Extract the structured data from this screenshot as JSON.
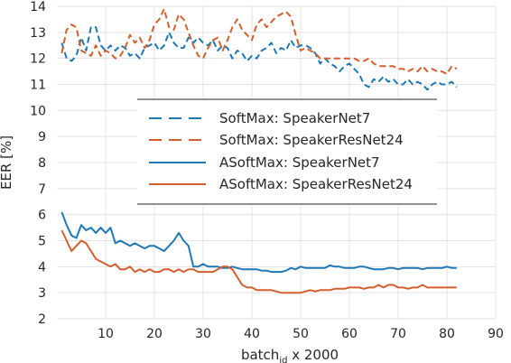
{
  "chart_data": {
    "type": "line",
    "xlabel_main": "batch",
    "xlabel_sub": "id",
    "xlabel_tail": " x 2000",
    "ylabel": "EER [%]",
    "xlim": [
      0,
      90
    ],
    "ylim": [
      2,
      14
    ],
    "xticks": [
      "10",
      "20",
      "30",
      "40",
      "50",
      "60",
      "70",
      "80",
      "90"
    ],
    "yticks": [
      "2",
      "3",
      "4",
      "5",
      "6",
      "7",
      "8",
      "9",
      "10",
      "11",
      "12",
      "13",
      "14"
    ],
    "grid": true,
    "legend_position": "center",
    "series": [
      {
        "name": "SoftMax: SpeakerNet7",
        "color": "#1f77b4",
        "dash": "dashed",
        "x": [
          1,
          2,
          3,
          4,
          5,
          6,
          7,
          8,
          9,
          10,
          11,
          12,
          13,
          14,
          15,
          16,
          17,
          18,
          19,
          20,
          21,
          22,
          23,
          24,
          25,
          26,
          27,
          28,
          29,
          30,
          31,
          32,
          33,
          34,
          35,
          36,
          37,
          38,
          39,
          40,
          41,
          42,
          43,
          44,
          45,
          46,
          47,
          48,
          49,
          50,
          51,
          52,
          53,
          54,
          55,
          56,
          57,
          58,
          59,
          60,
          61,
          62,
          63,
          64,
          65,
          66,
          67,
          68,
          69,
          70,
          71,
          72,
          73,
          74,
          75,
          76,
          77,
          78,
          79,
          80,
          81,
          82
        ],
        "values": [
          12.6,
          12.0,
          11.9,
          12.1,
          12.8,
          12.3,
          13.2,
          13.2,
          12.5,
          12.3,
          12.5,
          12.3,
          12.5,
          12.4,
          12.1,
          12.2,
          12.0,
          12.4,
          12.5,
          12.6,
          12.3,
          12.5,
          13.0,
          12.6,
          12.4,
          12.4,
          12.8,
          12.6,
          12.8,
          12.6,
          12.5,
          12.7,
          12.3,
          12.5,
          12.4,
          12.0,
          12.3,
          12.2,
          11.9,
          12.1,
          12.0,
          12.3,
          12.4,
          12.6,
          12.2,
          12.4,
          12.3,
          12.7,
          12.4,
          12.5,
          12.5,
          12.4,
          12.2,
          11.8,
          12.0,
          11.8,
          11.7,
          11.5,
          11.7,
          11.8,
          11.6,
          11.4,
          11.0,
          10.9,
          11.2,
          11.1,
          11.3,
          11.1,
          11.2,
          11.0,
          11.0,
          11.2,
          11.0,
          11.1,
          11.0,
          10.8,
          11.0,
          11.1,
          11.0,
          11.0,
          11.1,
          10.9
        ]
      },
      {
        "name": "SoftMax: SpeakerResNet24",
        "color": "#d35f2e",
        "dash": "dashed",
        "x": [
          1,
          2,
          3,
          4,
          5,
          6,
          7,
          8,
          9,
          10,
          11,
          12,
          13,
          14,
          15,
          16,
          17,
          18,
          19,
          20,
          21,
          22,
          23,
          24,
          25,
          26,
          27,
          28,
          29,
          30,
          31,
          32,
          33,
          34,
          35,
          36,
          37,
          38,
          39,
          40,
          41,
          42,
          43,
          44,
          45,
          46,
          47,
          48,
          49,
          50,
          51,
          52,
          53,
          54,
          55,
          56,
          57,
          58,
          59,
          60,
          61,
          62,
          63,
          64,
          65,
          66,
          67,
          68,
          69,
          70,
          71,
          72,
          73,
          74,
          75,
          76,
          77,
          78,
          79,
          80,
          81,
          82
        ],
        "values": [
          12.2,
          13.1,
          13.3,
          13.2,
          12.3,
          12.2,
          12.1,
          12.5,
          12.1,
          12.3,
          12.2,
          12.0,
          12.1,
          12.4,
          12.9,
          12.6,
          12.8,
          12.4,
          12.7,
          13.3,
          13.5,
          13.9,
          13.2,
          13.1,
          13.7,
          13.5,
          13.0,
          12.5,
          12.1,
          12.0,
          12.4,
          12.7,
          12.8,
          12.3,
          12.7,
          13.2,
          13.5,
          13.1,
          12.9,
          12.7,
          13.3,
          13.5,
          13.2,
          13.4,
          13.6,
          13.7,
          13.8,
          13.6,
          12.9,
          12.3,
          12.4,
          12.3,
          12.2,
          12.0,
          12.0,
          12.0,
          12.0,
          12.0,
          12.0,
          12.0,
          12.0,
          11.9,
          11.9,
          12.0,
          11.8,
          11.7,
          11.7,
          11.7,
          11.7,
          11.6,
          11.6,
          11.5,
          11.6,
          11.5,
          11.7,
          11.5,
          11.6,
          11.5,
          11.5,
          11.4,
          11.7,
          11.6
        ]
      },
      {
        "name": "ASoftMax: SpeakerNet7",
        "color": "#1f77b4",
        "dash": "solid",
        "x": [
          1,
          2,
          3,
          4,
          5,
          6,
          7,
          8,
          9,
          10,
          11,
          12,
          13,
          14,
          15,
          16,
          17,
          18,
          19,
          20,
          21,
          22,
          23,
          24,
          25,
          26,
          27,
          28,
          29,
          30,
          31,
          32,
          33,
          34,
          35,
          36,
          37,
          38,
          39,
          40,
          41,
          42,
          43,
          44,
          45,
          46,
          47,
          48,
          49,
          50,
          51,
          52,
          53,
          54,
          55,
          56,
          57,
          58,
          59,
          60,
          61,
          62,
          63,
          64,
          65,
          66,
          67,
          68,
          69,
          70,
          71,
          72,
          73,
          74,
          75,
          76,
          77,
          78,
          79,
          80,
          81,
          82
        ],
        "values": [
          6.1,
          5.6,
          5.2,
          5.1,
          5.6,
          5.4,
          5.5,
          5.3,
          5.5,
          5.3,
          5.5,
          4.9,
          5.0,
          4.9,
          4.8,
          4.9,
          4.8,
          4.7,
          4.8,
          4.8,
          4.7,
          4.6,
          4.8,
          5.0,
          5.3,
          5.0,
          4.8,
          4.0,
          4.0,
          4.1,
          4.0,
          4.0,
          4.0,
          3.95,
          3.95,
          4.0,
          3.95,
          3.9,
          3.9,
          3.9,
          3.9,
          3.85,
          3.85,
          3.8,
          3.8,
          3.8,
          3.85,
          3.95,
          3.9,
          4.0,
          3.95,
          3.95,
          3.95,
          3.95,
          3.95,
          4.05,
          4.0,
          4.0,
          3.95,
          3.95,
          3.95,
          4.0,
          4.0,
          3.95,
          3.9,
          3.9,
          3.9,
          3.95,
          3.95,
          3.9,
          3.95,
          3.95,
          3.95,
          3.95,
          3.9,
          3.95,
          3.95,
          3.95,
          3.95,
          4.0,
          3.95,
          3.95
        ]
      },
      {
        "name": "ASoftMax: SpeakerResNet24",
        "color": "#d35f2e",
        "dash": "solid",
        "x": [
          1,
          2,
          3,
          4,
          5,
          6,
          7,
          8,
          9,
          10,
          11,
          12,
          13,
          14,
          15,
          16,
          17,
          18,
          19,
          20,
          21,
          22,
          23,
          24,
          25,
          26,
          27,
          28,
          29,
          30,
          31,
          32,
          33,
          34,
          35,
          36,
          37,
          38,
          39,
          40,
          41,
          42,
          43,
          44,
          45,
          46,
          47,
          48,
          49,
          50,
          51,
          52,
          53,
          54,
          55,
          56,
          57,
          58,
          59,
          60,
          61,
          62,
          63,
          64,
          65,
          66,
          67,
          68,
          69,
          70,
          71,
          72,
          73,
          74,
          75,
          76,
          77,
          78,
          79,
          80,
          81,
          82
        ],
        "values": [
          5.4,
          5.0,
          4.6,
          4.8,
          5.0,
          4.9,
          4.6,
          4.3,
          4.2,
          4.1,
          4.0,
          4.1,
          3.9,
          3.9,
          4.0,
          3.8,
          3.9,
          3.8,
          3.9,
          3.8,
          3.8,
          3.9,
          3.9,
          3.8,
          3.9,
          3.8,
          3.9,
          3.9,
          3.8,
          3.8,
          3.8,
          3.8,
          3.9,
          4.0,
          4.0,
          3.9,
          3.6,
          3.3,
          3.2,
          3.2,
          3.1,
          3.1,
          3.1,
          3.1,
          3.05,
          3.0,
          3.0,
          3.0,
          3.0,
          3.0,
          3.05,
          3.1,
          3.05,
          3.1,
          3.1,
          3.1,
          3.15,
          3.15,
          3.15,
          3.2,
          3.2,
          3.2,
          3.15,
          3.2,
          3.2,
          3.3,
          3.2,
          3.3,
          3.3,
          3.2,
          3.2,
          3.15,
          3.2,
          3.2,
          3.3,
          3.2,
          3.2,
          3.2,
          3.2,
          3.2,
          3.2,
          3.2
        ]
      }
    ]
  }
}
